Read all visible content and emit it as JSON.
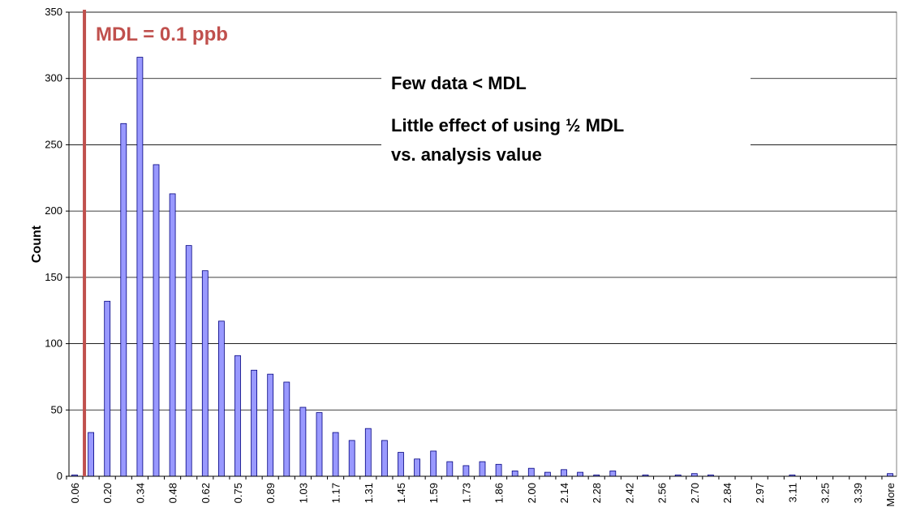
{
  "chart_data": {
    "type": "bar",
    "y_label": "Count",
    "categories": [
      "0.06",
      null,
      "0.20",
      null,
      "0.34",
      null,
      "0.48",
      null,
      "0.62",
      null,
      "0.75",
      null,
      "0.89",
      null,
      "1.03",
      null,
      "1.17",
      null,
      "1.31",
      null,
      "1.45",
      null,
      "1.59",
      null,
      "1.73",
      null,
      "1.86",
      null,
      "2.00",
      null,
      "2.14",
      null,
      "2.28",
      null,
      "2.42",
      null,
      "2.56",
      null,
      "2.70",
      null,
      "2.84",
      null,
      "2.97",
      null,
      "3.11",
      null,
      "3.25",
      null,
      "3.39",
      null,
      "More"
    ],
    "values": [
      1,
      33,
      132,
      266,
      316,
      235,
      213,
      174,
      155,
      117,
      91,
      80,
      77,
      71,
      52,
      48,
      33,
      27,
      36,
      27,
      18,
      13,
      19,
      11,
      8,
      11,
      9,
      4,
      6,
      3,
      5,
      3,
      1,
      4,
      0,
      1,
      0,
      1,
      2,
      1,
      0,
      0,
      0,
      0,
      1,
      0,
      0,
      0,
      0,
      0,
      2
    ],
    "color": "#9999ff",
    "ylim": [
      0,
      350
    ],
    "yticks": [
      0,
      50,
      100,
      150,
      200,
      250,
      300,
      350
    ],
    "grid": true,
    "annotations": [
      "MDL = 0.1 ppb",
      "Few data < MDL",
      "Little effect of using ½ MDL",
      "vs. analysis value"
    ]
  }
}
